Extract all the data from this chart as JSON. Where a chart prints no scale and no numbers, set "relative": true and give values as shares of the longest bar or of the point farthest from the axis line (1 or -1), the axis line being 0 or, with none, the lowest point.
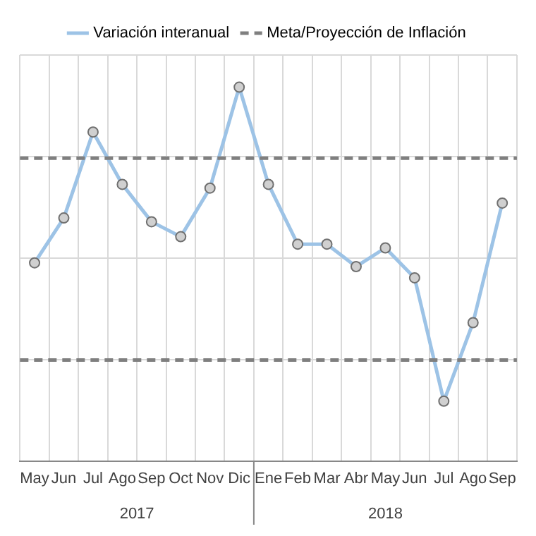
{
  "chart_data": {
    "type": "line",
    "relative": true,
    "categories": [
      "May",
      "Jun",
      "Jul",
      "Ago",
      "Sep",
      "Oct",
      "Nov",
      "Dic",
      "Ene",
      "Feb",
      "Mar",
      "Abr",
      "May",
      "Jun",
      "Jul",
      "Ago",
      "Sep"
    ],
    "series": [
      {
        "name": "Variación interanual",
        "color": "#9dc3e6",
        "values": [
          0.53,
          0.65,
          0.88,
          0.74,
          0.64,
          0.6,
          0.73,
          1,
          0.74,
          0.58,
          0.58,
          0.52,
          0.57,
          0.49,
          0.16,
          0.37,
          0.69
        ]
      }
    ],
    "ref_lines": [
      {
        "axis": "y",
        "value": 0.81,
        "label": "Meta/Proyección de Inflación",
        "color": "#7f7f7f",
        "line_style": "dashed"
      },
      {
        "axis": "y",
        "value": 0.27,
        "color": "#7f7f7f",
        "line_style": "dashed"
      }
    ],
    "annotations": [
      "2017",
      "2018"
    ],
    "grid": true,
    "legend": "top",
    "marker": "circle",
    "line_style": "solid"
  }
}
